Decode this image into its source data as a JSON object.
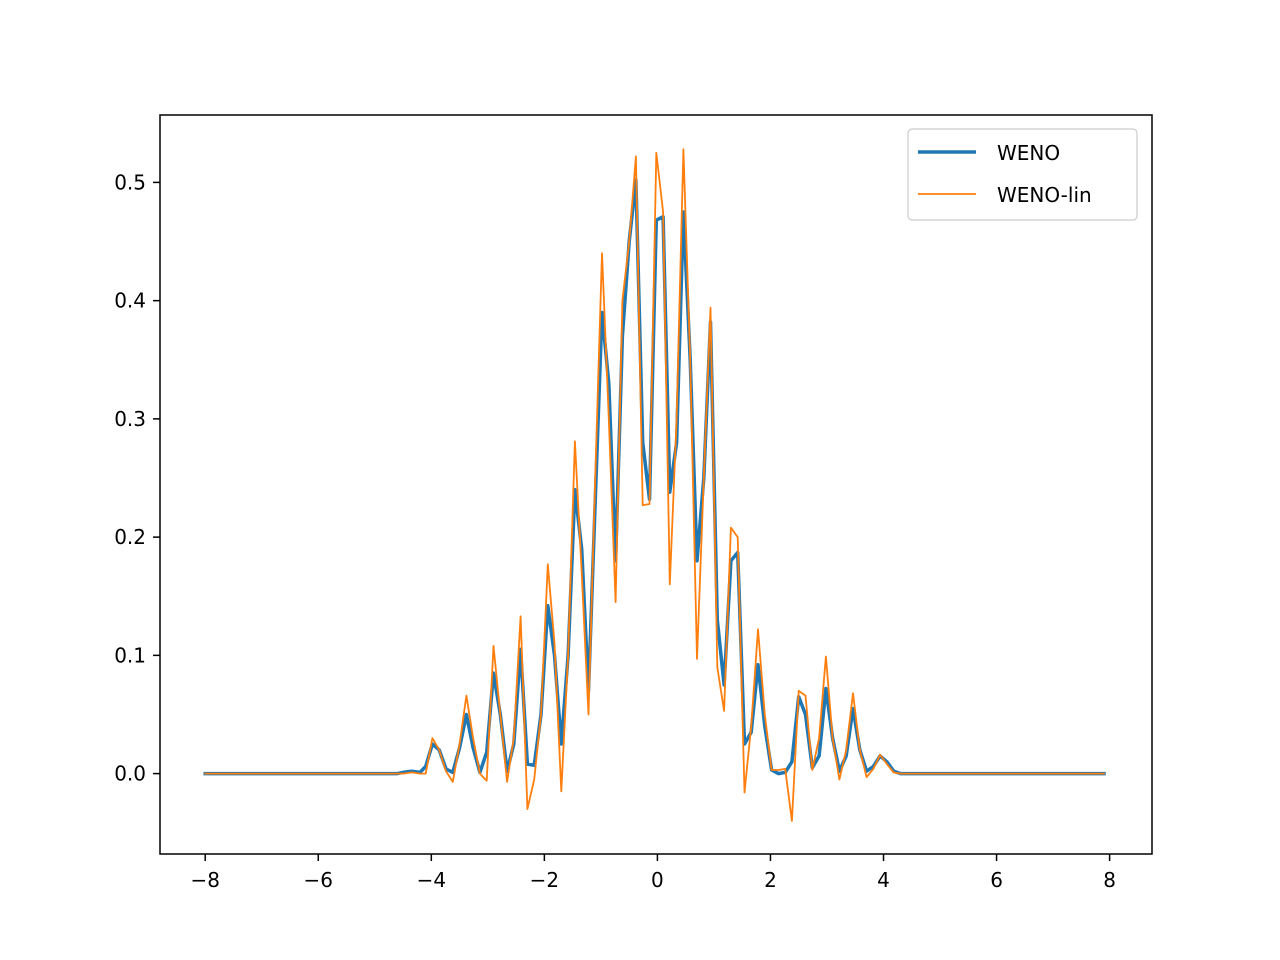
{
  "chart_data": {
    "type": "line",
    "title": "",
    "xlabel": "",
    "ylabel": "",
    "xlim": [
      -8.8,
      8.75
    ],
    "ylim": [
      -0.068,
      0.557
    ],
    "xticks": [
      -8,
      -6,
      -4,
      -2,
      0,
      2,
      4,
      6,
      8
    ],
    "xtick_labels": [
      "−8",
      "−6",
      "−4",
      "−2",
      "0",
      "2",
      "4",
      "6",
      "8"
    ],
    "yticks": [
      0.0,
      0.1,
      0.2,
      0.3,
      0.4,
      0.5
    ],
    "ytick_labels": [
      "0.0",
      "0.1",
      "0.2",
      "0.3",
      "0.4",
      "0.5"
    ],
    "grid": false,
    "legend_position": "upper right",
    "series": [
      {
        "name": "WENO",
        "color": "#1f77b4",
        "line_width": 3.5,
        "points": [
          [
            -8.0,
            0
          ],
          [
            -4.6,
            0
          ],
          [
            -4.5,
            0.001
          ],
          [
            -4.35,
            0.002
          ],
          [
            -4.2,
            0.001
          ],
          [
            -4.1,
            0.006
          ],
          [
            -3.98,
            0.025
          ],
          [
            -3.86,
            0.02
          ],
          [
            -3.74,
            0.004
          ],
          [
            -3.62,
            0.001
          ],
          [
            -3.5,
            0.022
          ],
          [
            -3.38,
            0.05
          ],
          [
            -3.26,
            0.022
          ],
          [
            -3.14,
            0.001
          ],
          [
            -3.02,
            0.018
          ],
          [
            -2.9,
            0.085
          ],
          [
            -2.78,
            0.05
          ],
          [
            -2.66,
            0.002
          ],
          [
            -2.54,
            0.025
          ],
          [
            -2.42,
            0.105
          ],
          [
            -2.3,
            0.008
          ],
          [
            -2.18,
            0.007
          ],
          [
            -2.06,
            0.05
          ],
          [
            -1.94,
            0.142
          ],
          [
            -1.82,
            0.1
          ],
          [
            -1.7,
            0.025
          ],
          [
            -1.58,
            0.1
          ],
          [
            -1.46,
            0.24
          ],
          [
            -1.34,
            0.19
          ],
          [
            -1.22,
            0.07
          ],
          [
            -1.1,
            0.23
          ],
          [
            -0.98,
            0.39
          ],
          [
            -0.86,
            0.33
          ],
          [
            -0.74,
            0.18
          ],
          [
            -0.62,
            0.37
          ],
          [
            -0.5,
            0.45
          ],
          [
            -0.38,
            0.502
          ],
          [
            -0.26,
            0.28
          ],
          [
            -0.14,
            0.232
          ],
          [
            -0.02,
            0.468
          ],
          [
            0.1,
            0.471
          ],
          [
            0.22,
            0.238
          ],
          [
            0.34,
            0.28
          ],
          [
            0.46,
            0.475
          ],
          [
            0.58,
            0.35
          ],
          [
            0.7,
            0.18
          ],
          [
            0.82,
            0.25
          ],
          [
            0.94,
            0.382
          ],
          [
            1.06,
            0.13
          ],
          [
            1.18,
            0.075
          ],
          [
            1.3,
            0.18
          ],
          [
            1.42,
            0.187
          ],
          [
            1.54,
            0.025
          ],
          [
            1.66,
            0.035
          ],
          [
            1.78,
            0.092
          ],
          [
            1.9,
            0.04
          ],
          [
            2.02,
            0.003
          ],
          [
            2.14,
            0.0
          ],
          [
            2.26,
            0.001
          ],
          [
            2.38,
            0.01
          ],
          [
            2.5,
            0.065
          ],
          [
            2.62,
            0.05
          ],
          [
            2.74,
            0.005
          ],
          [
            2.86,
            0.015
          ],
          [
            2.98,
            0.072
          ],
          [
            3.1,
            0.03
          ],
          [
            3.22,
            0.002
          ],
          [
            3.34,
            0.015
          ],
          [
            3.46,
            0.055
          ],
          [
            3.58,
            0.02
          ],
          [
            3.7,
            0.002
          ],
          [
            3.82,
            0.006
          ],
          [
            3.94,
            0.015
          ],
          [
            4.06,
            0.01
          ],
          [
            4.18,
            0.002
          ],
          [
            4.3,
            0.0
          ],
          [
            7.9,
            0
          ]
        ]
      },
      {
        "name": "WENO-lin",
        "color": "#ff7f0e",
        "line_width": 1.8,
        "points": [
          [
            -8.0,
            0
          ],
          [
            -4.6,
            0
          ],
          [
            -4.5,
            0.0
          ],
          [
            -4.35,
            0.001
          ],
          [
            -4.2,
            0.0
          ],
          [
            -4.1,
            0.0
          ],
          [
            -3.98,
            0.03
          ],
          [
            -3.86,
            0.02
          ],
          [
            -3.74,
            0.002
          ],
          [
            -3.62,
            -0.007
          ],
          [
            -3.5,
            0.025
          ],
          [
            -3.38,
            0.066
          ],
          [
            -3.26,
            0.03
          ],
          [
            -3.14,
            0.0
          ],
          [
            -3.02,
            -0.006
          ],
          [
            -2.9,
            0.108
          ],
          [
            -2.78,
            0.05
          ],
          [
            -2.66,
            -0.007
          ],
          [
            -2.54,
            0.03
          ],
          [
            -2.42,
            0.133
          ],
          [
            -2.3,
            -0.03
          ],
          [
            -2.18,
            -0.005
          ],
          [
            -2.06,
            0.05
          ],
          [
            -1.94,
            0.177
          ],
          [
            -1.82,
            0.11
          ],
          [
            -1.7,
            -0.015
          ],
          [
            -1.58,
            0.1
          ],
          [
            -1.46,
            0.281
          ],
          [
            -1.34,
            0.17
          ],
          [
            -1.22,
            0.05
          ],
          [
            -1.1,
            0.25
          ],
          [
            -0.98,
            0.44
          ],
          [
            -0.86,
            0.3
          ],
          [
            -0.74,
            0.145
          ],
          [
            -0.62,
            0.4
          ],
          [
            -0.5,
            0.45
          ],
          [
            -0.38,
            0.522
          ],
          [
            -0.26,
            0.227
          ],
          [
            -0.14,
            0.228
          ],
          [
            -0.02,
            0.525
          ],
          [
            0.1,
            0.475
          ],
          [
            0.22,
            0.16
          ],
          [
            0.34,
            0.3
          ],
          [
            0.46,
            0.528
          ],
          [
            0.58,
            0.35
          ],
          [
            0.7,
            0.097
          ],
          [
            0.82,
            0.25
          ],
          [
            0.94,
            0.394
          ],
          [
            1.06,
            0.09
          ],
          [
            1.18,
            0.053
          ],
          [
            1.3,
            0.208
          ],
          [
            1.42,
            0.2
          ],
          [
            1.54,
            -0.016
          ],
          [
            1.66,
            0.04
          ],
          [
            1.78,
            0.122
          ],
          [
            1.9,
            0.05
          ],
          [
            2.02,
            0.003
          ],
          [
            2.14,
            0.003
          ],
          [
            2.26,
            0.004
          ],
          [
            2.38,
            -0.04
          ],
          [
            2.5,
            0.07
          ],
          [
            2.62,
            0.066
          ],
          [
            2.74,
            0.003
          ],
          [
            2.86,
            0.03
          ],
          [
            2.98,
            0.099
          ],
          [
            3.1,
            0.03
          ],
          [
            3.22,
            -0.005
          ],
          [
            3.34,
            0.02
          ],
          [
            3.46,
            0.068
          ],
          [
            3.58,
            0.02
          ],
          [
            3.7,
            -0.003
          ],
          [
            3.82,
            0.004
          ],
          [
            3.94,
            0.016
          ],
          [
            4.06,
            0.008
          ],
          [
            4.18,
            0.001
          ],
          [
            4.3,
            0.0
          ],
          [
            7.9,
            0
          ]
        ]
      }
    ]
  }
}
